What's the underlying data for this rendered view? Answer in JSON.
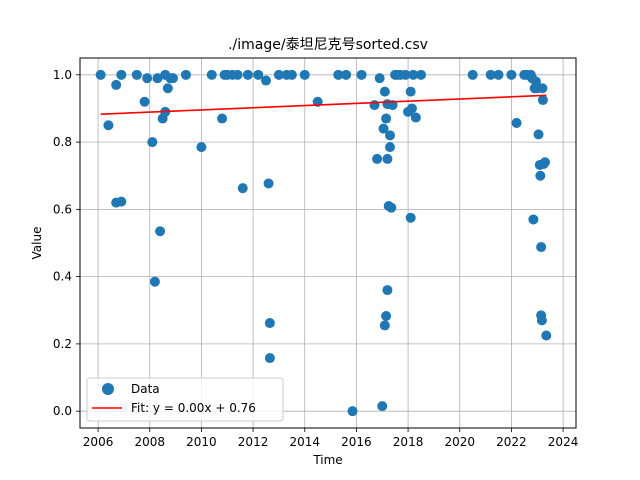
{
  "chart_data": {
    "type": "scatter",
    "title": "./image/泰坦尼克号sorted.csv",
    "xlabel": "Time",
    "ylabel": "Value",
    "xlim": [
      2005.3,
      2024.5
    ],
    "ylim": [
      -0.05,
      1.05
    ],
    "xticks": [
      2006,
      2008,
      2010,
      2012,
      2014,
      2016,
      2018,
      2020,
      2022,
      2024
    ],
    "xtick_labels": [
      "2006",
      "2008",
      "2010",
      "2012",
      "2014",
      "2016",
      "2018",
      "2020",
      "2022",
      "2024"
    ],
    "yticks": [
      0.0,
      0.2,
      0.4,
      0.6,
      0.8,
      1.0
    ],
    "ytick_labels": [
      "0.0",
      "0.2",
      "0.4",
      "0.6",
      "0.8",
      "1.0"
    ],
    "grid": true,
    "legend_position": "lower-left",
    "colors": {
      "data": "#1f77b4",
      "fit": "#ff0000"
    },
    "series": [
      {
        "name": "Data",
        "kind": "scatter",
        "x": [
          2006.1,
          2006.4,
          2006.7,
          2006.7,
          2006.9,
          2006.9,
          2007.5,
          2007.8,
          2007.9,
          2008.1,
          2008.2,
          2008.3,
          2008.4,
          2008.5,
          2008.6,
          2008.6,
          2008.7,
          2008.8,
          2008.9,
          2009.4,
          2010.0,
          2010.4,
          2010.8,
          2010.9,
          2011.0,
          2011.2,
          2011.4,
          2011.6,
          2011.8,
          2012.2,
          2012.5,
          2012.6,
          2012.65,
          2012.65,
          2013.0,
          2013.3,
          2013.5,
          2014.0,
          2014.5,
          2015.3,
          2015.6,
          2015.85,
          2016.2,
          2016.7,
          2016.8,
          2016.9,
          2017.0,
          2017.05,
          2017.1,
          2017.1,
          2017.15,
          2017.15,
          2017.2,
          2017.2,
          2017.2,
          2017.25,
          2017.3,
          2017.3,
          2017.35,
          2017.4,
          2017.5,
          2017.6,
          2017.7,
          2017.9,
          2018.0,
          2018.1,
          2018.1,
          2018.15,
          2018.2,
          2018.3,
          2018.5,
          2020.5,
          2021.2,
          2021.5,
          2022.0,
          2022.2,
          2022.5,
          2022.6,
          2022.75,
          2022.8,
          2022.85,
          2022.9,
          2022.95,
          2023.0,
          2023.05,
          2023.1,
          2023.12,
          2023.15,
          2023.15,
          2023.18,
          2023.2,
          2023.22,
          2023.25,
          2023.3,
          2023.35
        ],
        "y": [
          1.0,
          0.85,
          0.62,
          0.97,
          0.623,
          1.0,
          1.0,
          0.92,
          0.99,
          0.8,
          0.385,
          0.99,
          0.535,
          0.87,
          0.89,
          1.0,
          0.96,
          0.99,
          0.99,
          1.0,
          0.785,
          1.0,
          0.87,
          1.0,
          1.0,
          1.0,
          1.0,
          0.663,
          1.0,
          1.0,
          0.983,
          0.677,
          0.262,
          0.158,
          1.0,
          1.0,
          1.0,
          1.0,
          0.92,
          1.0,
          1.0,
          0.0,
          1.0,
          0.91,
          0.75,
          0.99,
          0.015,
          0.84,
          0.95,
          0.255,
          0.87,
          0.283,
          0.75,
          0.913,
          0.36,
          0.61,
          0.785,
          0.82,
          0.605,
          0.91,
          1.0,
          1.0,
          1.0,
          1.0,
          0.89,
          0.575,
          0.95,
          0.9,
          1.0,
          0.873,
          1.0,
          1.0,
          1.0,
          1.0,
          1.0,
          0.857,
          1.0,
          1.0,
          1.0,
          0.99,
          0.57,
          0.96,
          0.98,
          0.96,
          0.823,
          0.732,
          0.7,
          0.285,
          0.488,
          0.27,
          0.96,
          0.925,
          0.735,
          0.74,
          0.225
        ]
      },
      {
        "name": "Fit: y = 0.00x + 0.76",
        "kind": "line",
        "x": [
          2006.1,
          2023.35
        ],
        "y": [
          0.883,
          0.939
        ]
      }
    ]
  }
}
